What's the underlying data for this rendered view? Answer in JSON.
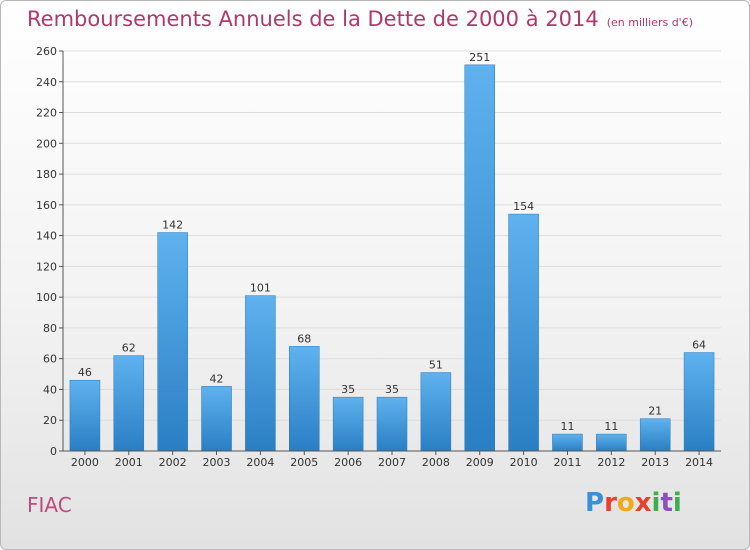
{
  "header": {
    "title": "Remboursements Annuels de la Dette de 2000 à 2014",
    "unit": "(en milliers d'€)"
  },
  "footer": {
    "commune": "FIAC",
    "logo_letters": [
      "P",
      "r",
      "o",
      "x",
      "i",
      "t",
      "i"
    ],
    "logo_colors": [
      "#3a8fd6",
      "#e8412f",
      "#f2a81d",
      "#e8412f",
      "#3fae49",
      "#8c4fc0",
      "#3fae49"
    ]
  },
  "colors": {
    "bar_top": "#5fb2ee",
    "bar_bottom": "#2a7fc4",
    "grid": "#dddddd",
    "text": "#333333"
  },
  "chart_data": {
    "type": "bar",
    "title": "Remboursements Annuels de la Dette de 2000 à 2014",
    "subtitle": "(en milliers d'€)",
    "categories": [
      "2000",
      "2001",
      "2002",
      "2003",
      "2004",
      "2005",
      "2006",
      "2007",
      "2008",
      "2009",
      "2010",
      "2011",
      "2012",
      "2013",
      "2014"
    ],
    "values": [
      46,
      62,
      142,
      42,
      101,
      68,
      35,
      35,
      51,
      251,
      154,
      11,
      11,
      21,
      64
    ],
    "ylim": [
      0,
      260
    ],
    "yticks": [
      0,
      20,
      40,
      60,
      80,
      100,
      120,
      140,
      160,
      180,
      200,
      220,
      240,
      260
    ],
    "grid": true,
    "xlabel": "",
    "ylabel": ""
  }
}
